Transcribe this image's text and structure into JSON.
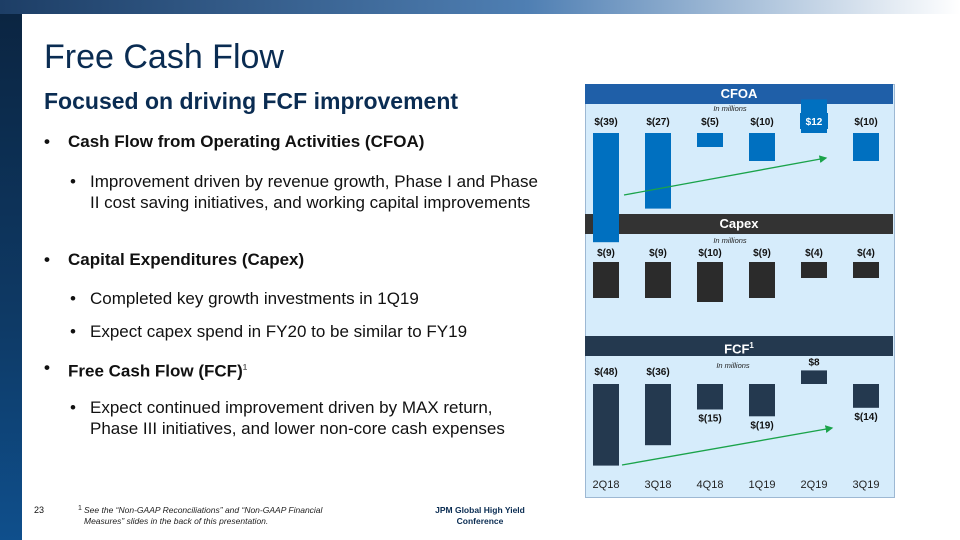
{
  "title": "Free Cash Flow",
  "subtitle": "Focused on driving FCF improvement",
  "bullets": {
    "cfoa": "Cash Flow from Operating Activities (CFOA)",
    "cfoa_sub": "Improvement driven by revenue growth, Phase I and Phase II cost saving initiatives, and working capital improvements",
    "capex": "Capital Expenditures (Capex)",
    "capex_sub1": "Completed key growth investments in 1Q19",
    "capex_sub2": "Expect capex spend in FY20 to be similar to FY19",
    "fcf": "Free Cash Flow (FCF)",
    "fcf_sup": "1",
    "fcf_sub": "Expect continued improvement driven by MAX return, Phase III initiatives, and lower non-core cash expenses",
    "dot": "•"
  },
  "footer": {
    "page_number": "23",
    "footnote_num": "1",
    "footnote_line1": "See the “Non-GAAP Reconciliations” and “Non-GAAP Financial",
    "footnote_line2": "Measures” slides in the back of this presentation.",
    "conference_line1": "JPM Global High Yield",
    "conference_line2": "Conference"
  },
  "colors": {
    "cfoa_bar": "#0070c0",
    "cfoa_header": "#1f5fa8",
    "capex_bar": "#2b2b2b",
    "capex_header": "#333333",
    "fcf_bar": "#24394f",
    "fcf_header": "#24394f",
    "trend": "#1aa34a",
    "highlight_box": "#0070c0"
  },
  "chart_data": [
    {
      "type": "bar",
      "title": "CFOA",
      "unit_label": "In millions",
      "categories": [
        "2Q18",
        "3Q18",
        "4Q18",
        "1Q19",
        "2Q19",
        "3Q19"
      ],
      "values": [
        -39,
        -27,
        -5,
        -10,
        12,
        -10
      ],
      "labels": [
        "$(39)",
        "$(27)",
        "$(5)",
        "$(10)",
        "$12",
        "$(10)"
      ],
      "highlight_index": 4
    },
    {
      "type": "bar",
      "title": "Capex",
      "unit_label": "In millions",
      "categories": [
        "2Q18",
        "3Q18",
        "4Q18",
        "1Q19",
        "2Q19",
        "3Q19"
      ],
      "values": [
        -9,
        -9,
        -10,
        -9,
        -4,
        -4
      ],
      "labels": [
        "$(9)",
        "$(9)",
        "$(10)",
        "$(9)",
        "$(4)",
        "$(4)"
      ]
    },
    {
      "type": "bar",
      "title": "FCF",
      "title_sup": "1",
      "unit_label": "In millions",
      "categories": [
        "2Q18",
        "3Q18",
        "4Q18",
        "1Q19",
        "2Q19",
        "3Q19"
      ],
      "values": [
        -48,
        -36,
        -15,
        -19,
        8,
        -14
      ],
      "labels": [
        "$(48)",
        "$(36)",
        "$(15)",
        "$(19)",
        "$8",
        "$(14)"
      ]
    }
  ]
}
